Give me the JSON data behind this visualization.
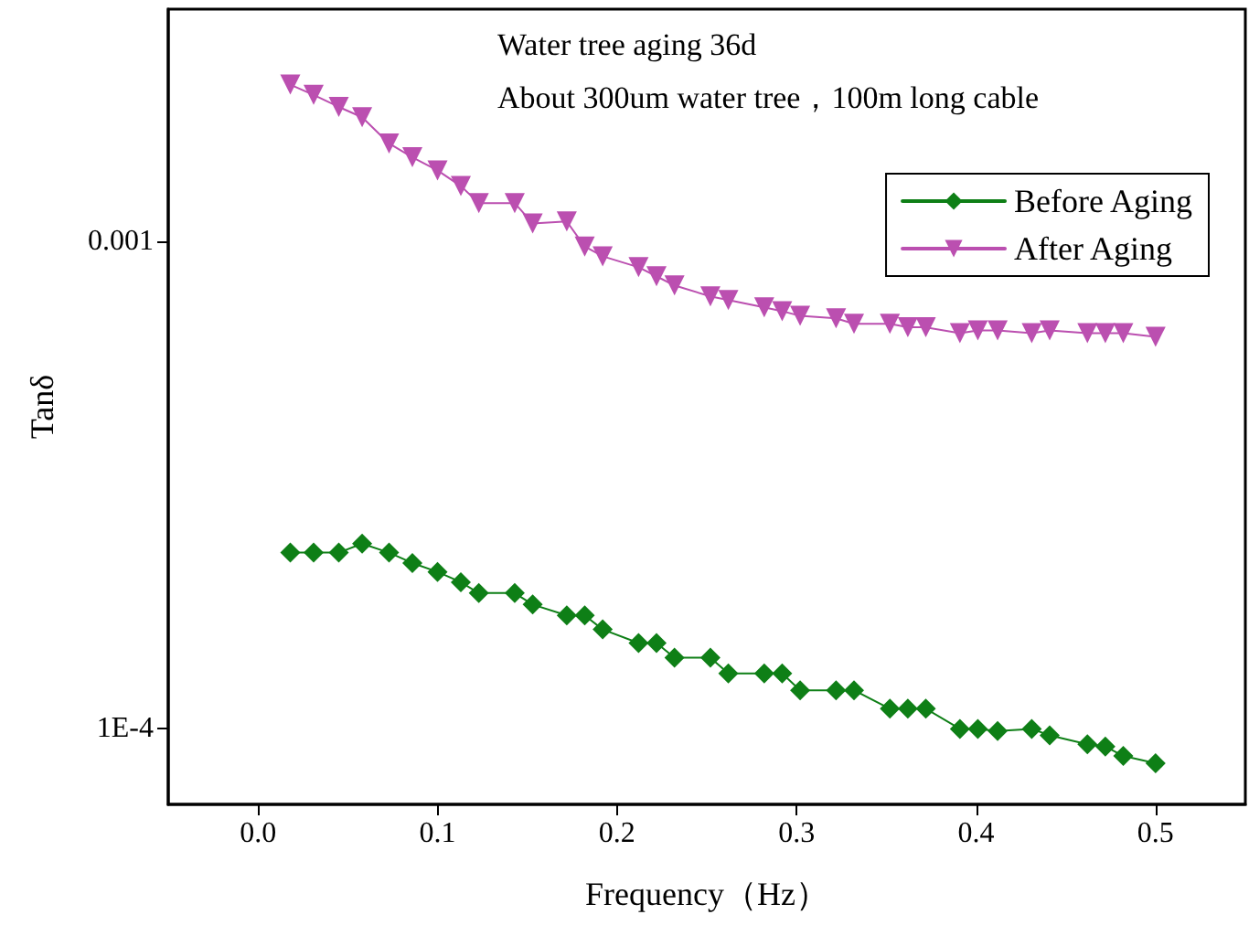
{
  "chart_data": {
    "type": "line",
    "xlabel": "Frequency（Hz）",
    "ylabel": "Tanδ",
    "annotations": [
      "Water tree aging 36d",
      "About 300um water tree，100m long cable"
    ],
    "x": [
      0.018,
      0.031,
      0.045,
      0.058,
      0.073,
      0.086,
      0.1,
      0.113,
      0.123,
      0.143,
      0.153,
      0.172,
      0.182,
      0.192,
      0.212,
      0.222,
      0.232,
      0.252,
      0.262,
      0.282,
      0.292,
      0.302,
      0.322,
      0.332,
      0.352,
      0.362,
      0.372,
      0.391,
      0.401,
      0.412,
      0.431,
      0.441,
      0.462,
      0.472,
      0.482,
      0.5
    ],
    "series": [
      {
        "name": "Before Aging",
        "color": "#0e7f16",
        "marker": "diamond",
        "values": [
          0.00023,
          0.00023,
          0.00023,
          0.00024,
          0.00023,
          0.000219,
          0.00021,
          0.0002,
          0.00019,
          0.00019,
          0.00018,
          0.000171,
          0.000171,
          0.00016,
          0.00015,
          0.00015,
          0.00014,
          0.00014,
          0.00013,
          0.00013,
          0.00013,
          0.00012,
          0.00012,
          0.00012,
          0.00011,
          0.00011,
          0.00011,
          0.0001,
          0.0001,
          9.9e-05,
          0.0001,
          9.7e-05,
          9.3e-05,
          9.2e-05,
          8.8e-05,
          8.5e-05
        ]
      },
      {
        "name": "After Aging",
        "color": "#bb4fb0",
        "marker": "triangle",
        "values": [
          0.0021,
          0.002,
          0.00189,
          0.0018,
          0.00159,
          0.00149,
          0.0014,
          0.0013,
          0.0012,
          0.0012,
          0.00109,
          0.0011,
          0.000977,
          0.000933,
          0.000886,
          0.000849,
          0.000813,
          0.000772,
          0.000759,
          0.000733,
          0.00072,
          0.000704,
          0.000696,
          0.000678,
          0.000678,
          0.000667,
          0.000667,
          0.000649,
          0.000657,
          0.000657,
          0.000649,
          0.000657,
          0.000649,
          0.000649,
          0.000649,
          0.000638
        ]
      }
    ],
    "xlim": [
      -0.05,
      0.55
    ],
    "xticks": [
      {
        "value": 0,
        "label": "0.0"
      },
      0.1,
      0.2,
      0.3,
      0.4,
      0.5
    ],
    "ylim": [
      7e-05,
      0.003
    ],
    "yticks": [
      {
        "value": 0.0001,
        "label": "1E-4"
      },
      0.001
    ],
    "log": "y",
    "grid": false,
    "legend": "top right",
    "line_style": "solid"
  }
}
